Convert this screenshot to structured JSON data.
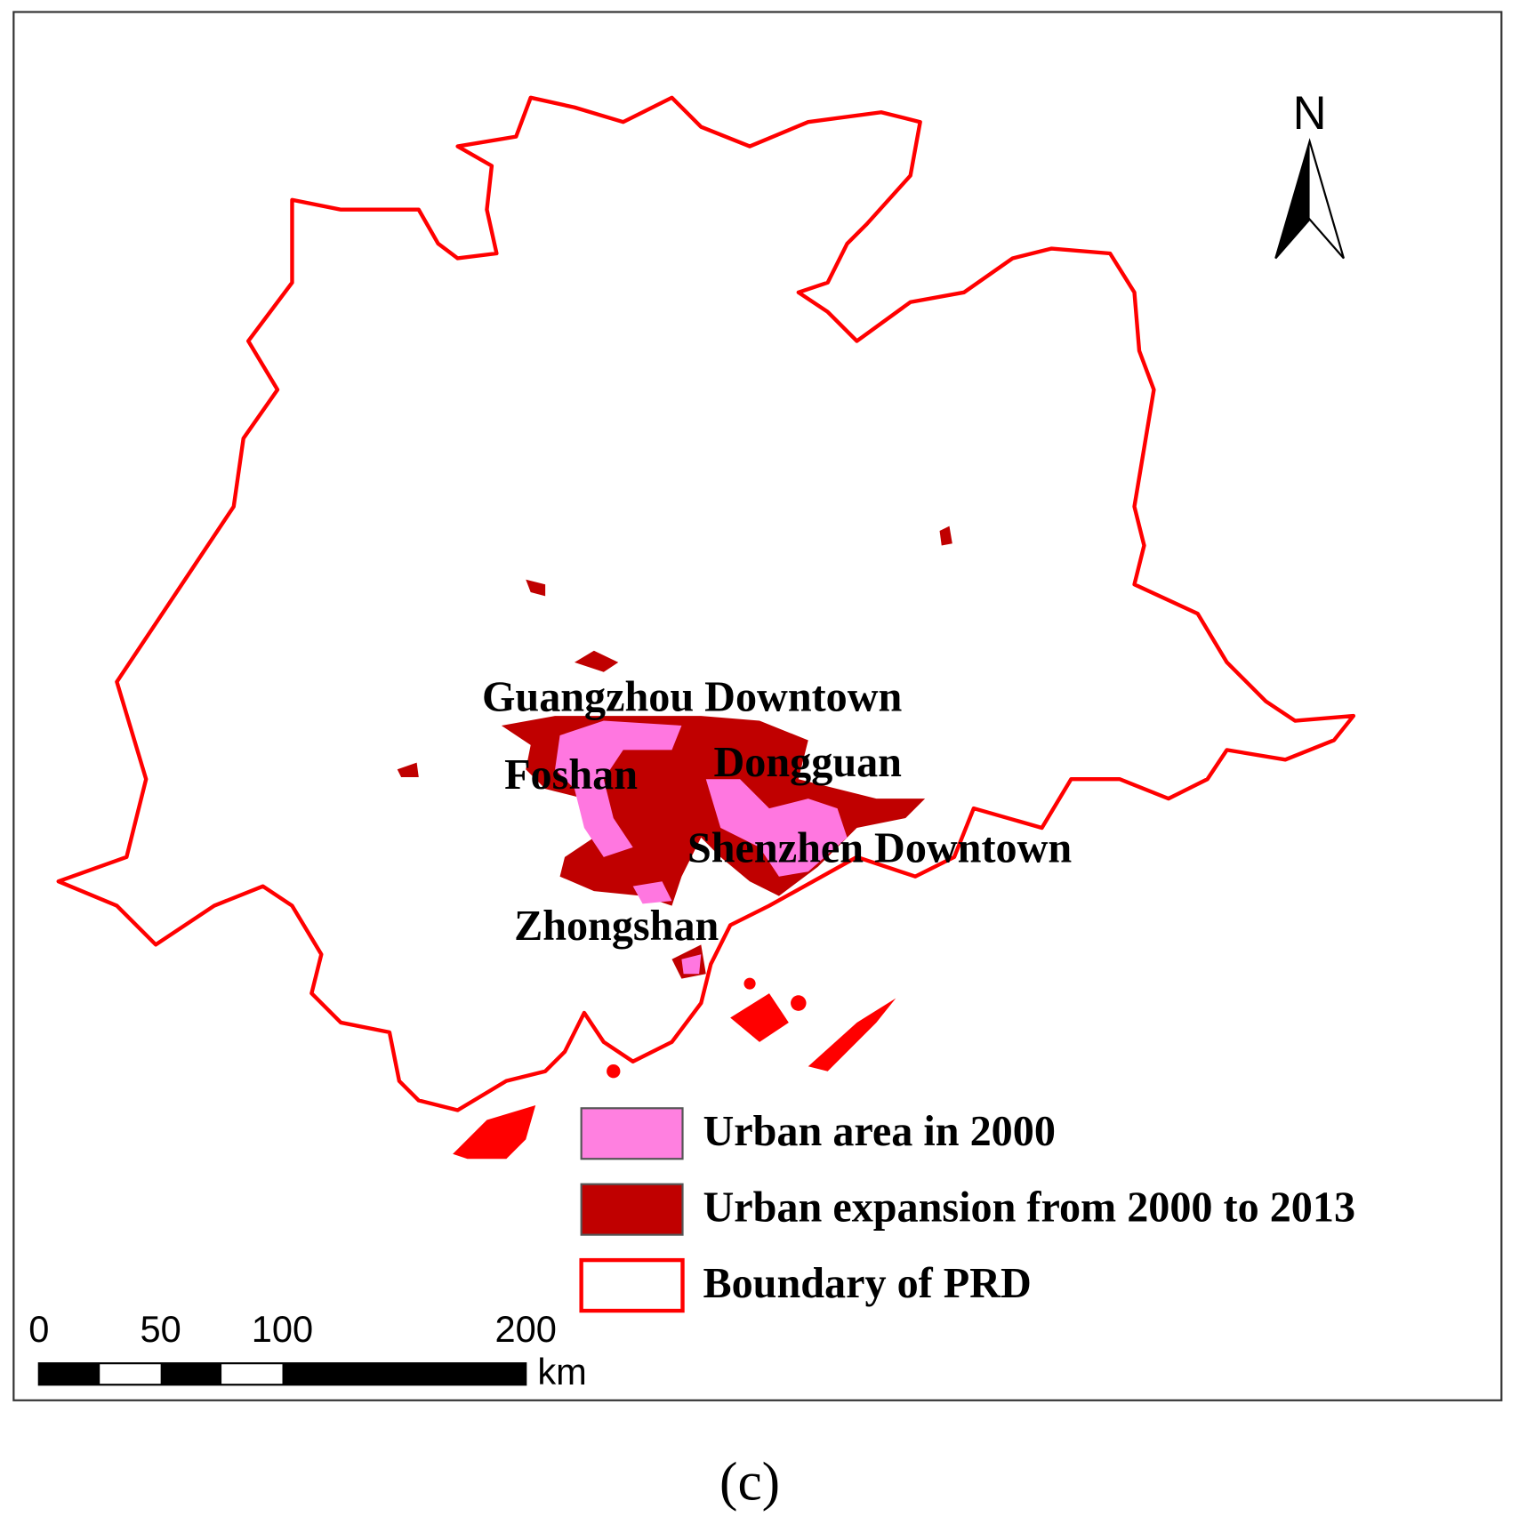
{
  "north_label": "N",
  "places": [
    "Guangzhou Downtown",
    "Foshan",
    "Dongguan",
    "Shenzhen Downtown",
    "Zhongshan"
  ],
  "legend": [
    "Urban area in 2000",
    "Urban expansion from 2000 to 2013",
    "Boundary of PRD"
  ],
  "scale_bar": {
    "ticks": [
      0,
      50,
      100,
      200
    ],
    "unit": "km"
  },
  "caption": "(c)"
}
